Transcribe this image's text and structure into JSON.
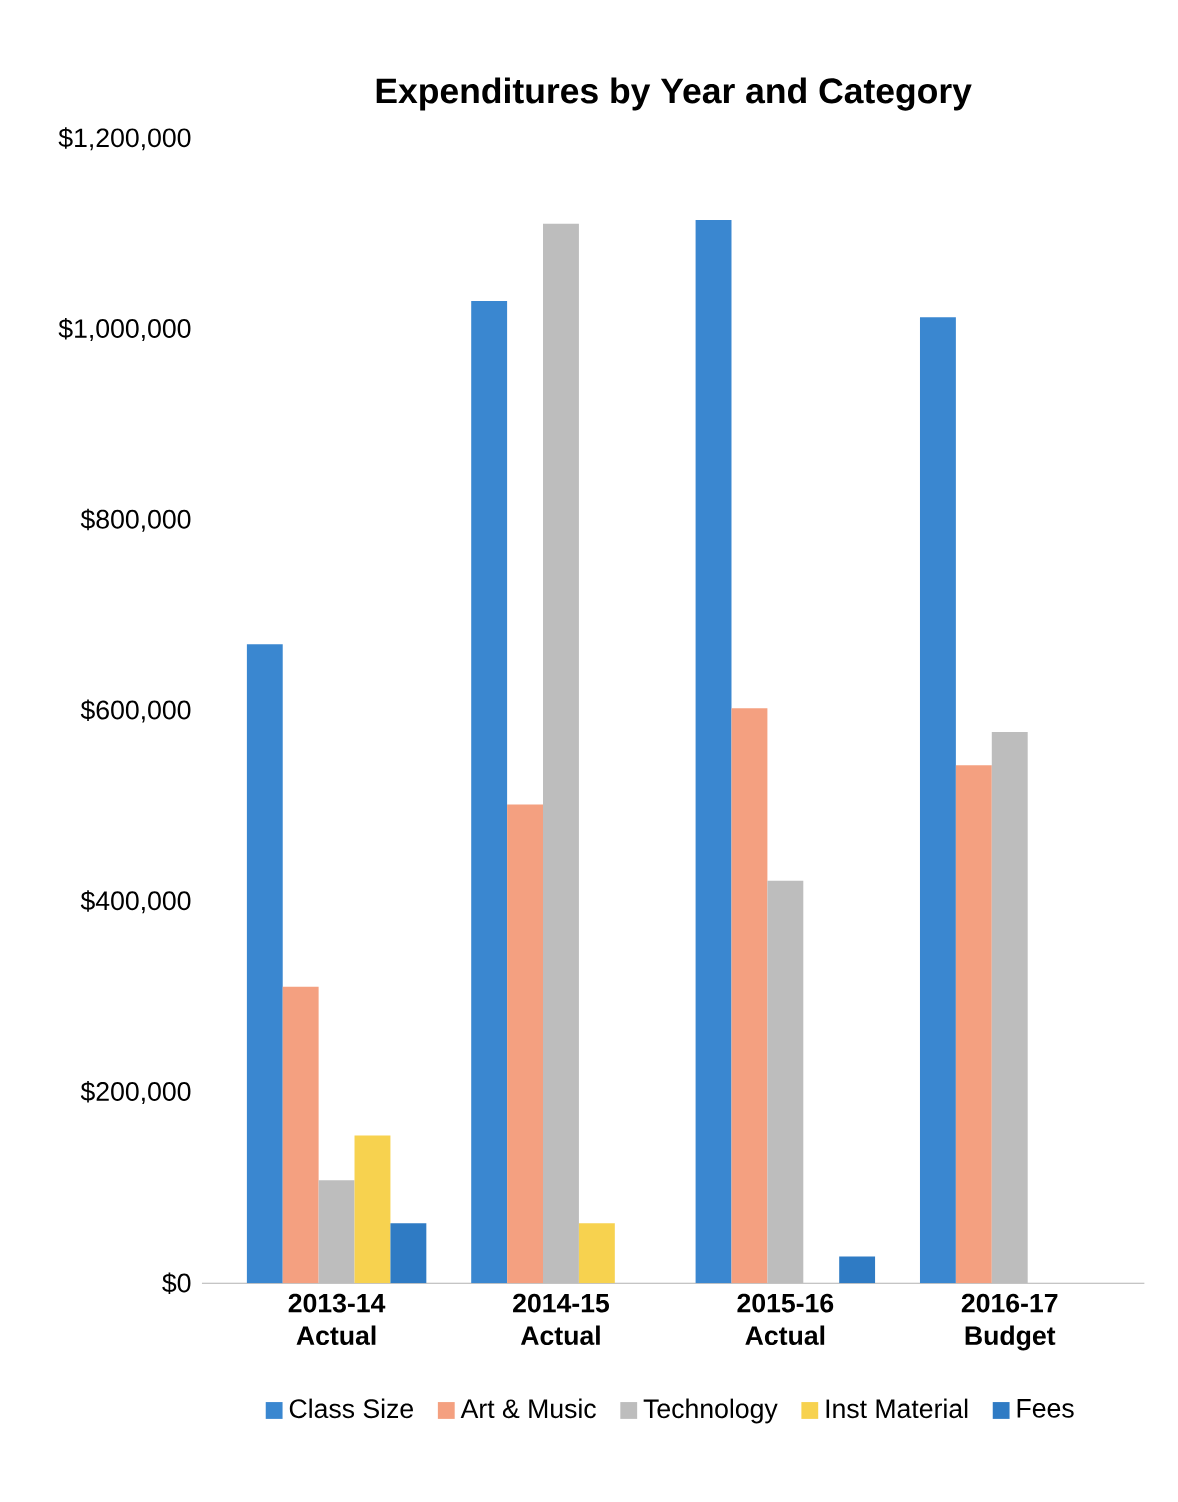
{
  "chart_data": {
    "type": "bar",
    "title": "Expenditures by Year and Category",
    "categories": [
      "2013-14 Actual",
      "2014-15 Actual",
      "2015-16 Actual",
      "2016-17 Budget"
    ],
    "series": [
      {
        "name": "Class Size",
        "color": "#3a87d0",
        "values": [
          670000,
          1030000,
          1115000,
          1013000
        ]
      },
      {
        "name": "Art & Music",
        "color": "#f4a080",
        "values": [
          311000,
          502000,
          603000,
          543000
        ]
      },
      {
        "name": "Technology",
        "color": "#bdbdbd",
        "values": [
          108000,
          1111000,
          422000,
          578000
        ]
      },
      {
        "name": "Inst Material",
        "color": "#f7d24f",
        "values": [
          155000,
          63000,
          null,
          null
        ]
      },
      {
        "name": "Fees",
        "color": "#2f7bc4",
        "values": [
          63000,
          null,
          28000,
          null
        ]
      }
    ],
    "ylim": [
      0,
      1200000
    ],
    "yticks": [
      {
        "value": 0,
        "label": "$0"
      },
      {
        "value": 200000,
        "label": "$200,000"
      },
      {
        "value": 400000,
        "label": "$400,000"
      },
      {
        "value": 600000,
        "label": "$600,000"
      },
      {
        "value": 800000,
        "label": "$800,000"
      },
      {
        "value": 1000000,
        "label": "$1,000,000"
      },
      {
        "value": 1200000,
        "label": "$1,200,000"
      }
    ],
    "legend": "bottom",
    "grid": false
  }
}
